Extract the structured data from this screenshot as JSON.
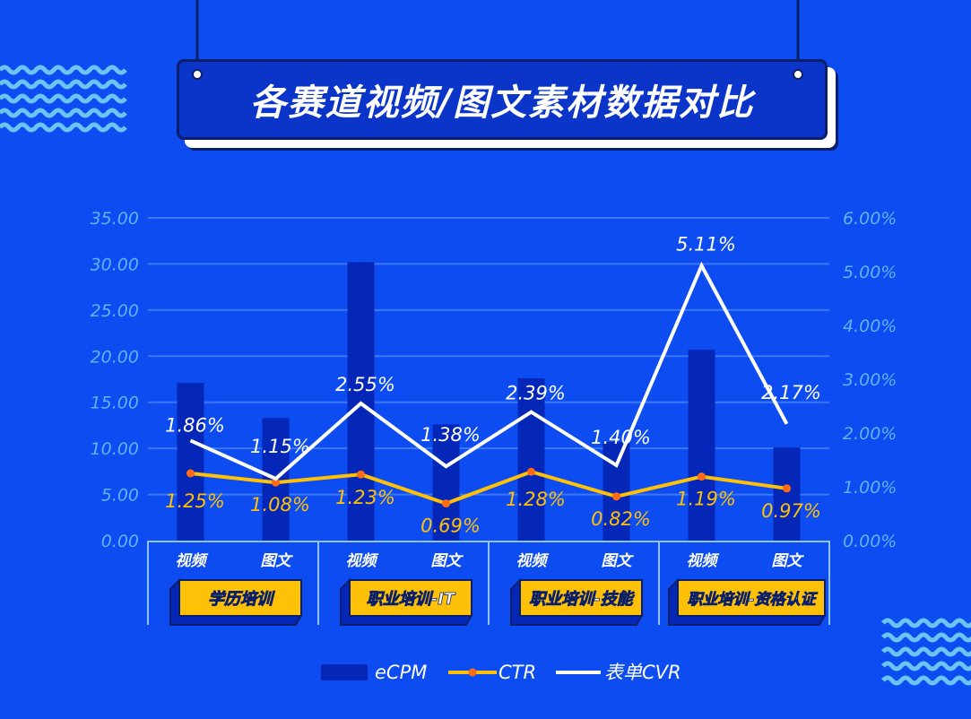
{
  "title": "各赛道视频/图文素材数据对比",
  "colors": {
    "background": "#0d4cf0",
    "bar": "#0527b8",
    "ctr": "#ffc107",
    "ctr_marker": "#ff6a13",
    "cvr": "#ffffff",
    "axis_text": "#5fb4ff",
    "grid": "#3d78f7"
  },
  "chart_data": {
    "type": "bar+line",
    "categories": [
      "视频",
      "图文",
      "视频",
      "图文",
      "视频",
      "图文",
      "视频",
      "图文"
    ],
    "groups": [
      "学历培训",
      "职业培训-IT",
      "职业培训-技能",
      "职业培训-资格认证"
    ],
    "left_axis": {
      "ylim": [
        0,
        35
      ],
      "ticks": [
        "0.00",
        "5.00",
        "10.00",
        "15.00",
        "20.00",
        "25.00",
        "30.00",
        "35.00"
      ]
    },
    "right_axis": {
      "ylim": [
        0,
        6
      ],
      "ticks": [
        "0.00%",
        "1.00%",
        "2.00%",
        "3.00%",
        "4.00%",
        "5.00%",
        "6.00%"
      ]
    },
    "grid": true,
    "legend_position": "bottom",
    "series": [
      {
        "name": "eCPM",
        "type": "bar",
        "axis": "left",
        "values": [
          17.1,
          13.3,
          30.2,
          12.6,
          17.6,
          10.7,
          20.7,
          10.1
        ]
      },
      {
        "name": "CTR",
        "type": "line",
        "axis": "right",
        "values": [
          1.25,
          1.08,
          1.23,
          0.69,
          1.28,
          0.82,
          1.19,
          0.97
        ],
        "labels": [
          "1.25%",
          "1.08%",
          "1.23%",
          "0.69%",
          "1.28%",
          "0.82%",
          "1.19%",
          "0.97%"
        ]
      },
      {
        "name": "表单CVR",
        "type": "line",
        "axis": "right",
        "values": [
          1.86,
          1.15,
          2.55,
          1.38,
          2.39,
          1.4,
          5.11,
          2.17
        ],
        "labels": [
          "1.86%",
          "1.15%",
          "2.55%",
          "1.38%",
          "2.39%",
          "1.40%",
          "5.11%",
          "2.17%"
        ]
      }
    ]
  }
}
